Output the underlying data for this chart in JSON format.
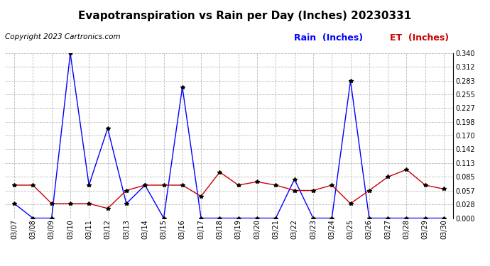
{
  "title": "Evapotranspiration vs Rain per Day (Inches) 20230331",
  "copyright": "Copyright 2023 Cartronics.com",
  "legend_rain": "Rain  (Inches)",
  "legend_et": "ET  (Inches)",
  "dates": [
    "03/07",
    "03/08",
    "03/09",
    "03/10",
    "03/11",
    "03/12",
    "03/13",
    "03/14",
    "03/15",
    "03/16",
    "03/17",
    "03/18",
    "03/19",
    "03/20",
    "03/21",
    "03/22",
    "03/23",
    "03/24",
    "03/25",
    "03/26",
    "03/27",
    "03/28",
    "03/29",
    "03/30"
  ],
  "rain": [
    0.03,
    0.0,
    0.0,
    0.34,
    0.068,
    0.185,
    0.03,
    0.068,
    0.0,
    0.27,
    0.0,
    0.0,
    0.0,
    0.0,
    0.0,
    0.08,
    0.0,
    0.0,
    0.283,
    0.0,
    0.0,
    0.0,
    0.0,
    0.0
  ],
  "et": [
    0.068,
    0.068,
    0.03,
    0.03,
    0.03,
    0.02,
    0.057,
    0.068,
    0.068,
    0.068,
    0.045,
    0.095,
    0.068,
    0.075,
    0.068,
    0.057,
    0.057,
    0.068,
    0.03,
    0.057,
    0.085,
    0.1,
    0.068,
    0.06
  ],
  "ylim": [
    0.0,
    0.34
  ],
  "yticks": [
    0.0,
    0.028,
    0.057,
    0.085,
    0.113,
    0.142,
    0.17,
    0.198,
    0.227,
    0.255,
    0.283,
    0.312,
    0.34
  ],
  "rain_color": "#0000ff",
  "et_color": "#cc0000",
  "title_color": "#000000",
  "copyright_color": "#000000",
  "background_color": "#ffffff",
  "grid_color": "#bbbbbb",
  "marker": "*",
  "marker_color": "#000000",
  "marker_size": 4,
  "line_width": 1.0,
  "title_fontsize": 11,
  "copyright_fontsize": 7.5,
  "legend_fontsize": 9,
  "tick_fontsize": 7
}
